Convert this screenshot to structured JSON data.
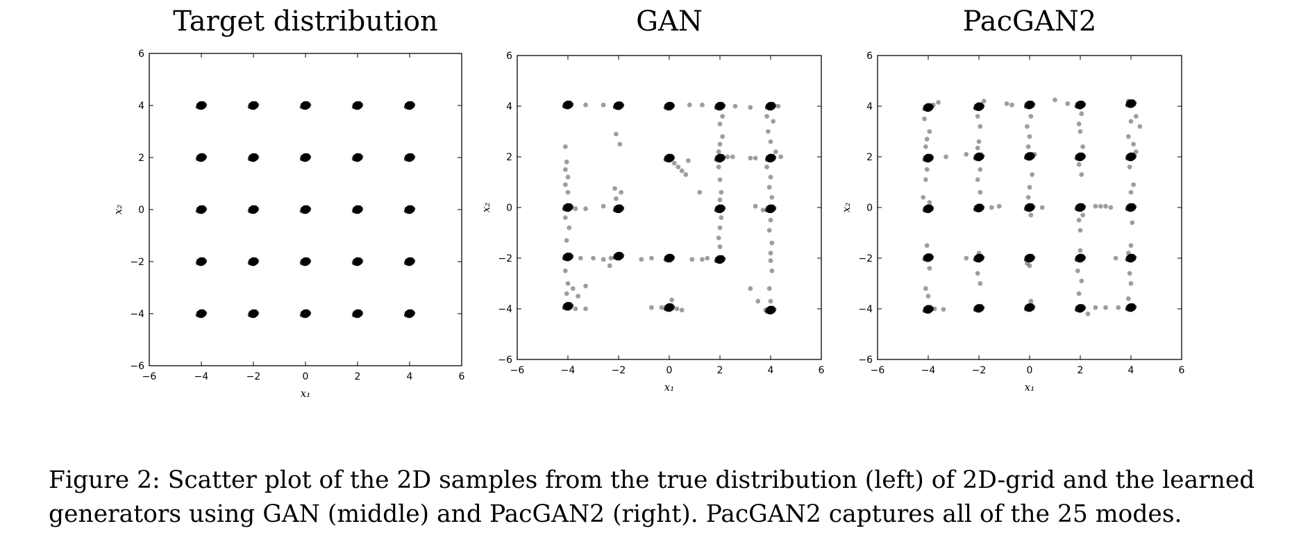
{
  "figure": {
    "caption_lines": [
      "Figure 2: Scatter plot of the 2D samples from the true distribution (left) of 2D-grid and the learned",
      "generators using GAN (middle) and PacGAN2 (right). PacGAN2 captures all of the 25 modes."
    ]
  },
  "chart_data": [
    {
      "type": "scatter",
      "title": "Target distribution",
      "xlabel": "x₁",
      "ylabel": "x₂",
      "xlim": [
        -6,
        6
      ],
      "ylim": [
        -6,
        6
      ],
      "xticks": [
        -6,
        -4,
        -2,
        0,
        2,
        4,
        6
      ],
      "yticks": [
        -6,
        -4,
        -2,
        0,
        2,
        4,
        6
      ],
      "grid": false,
      "series": [
        {
          "color": "#000000",
          "dense_points": [
            [
              -4,
              4
            ],
            [
              -2,
              4
            ],
            [
              0,
              4
            ],
            [
              2,
              4
            ],
            [
              4,
              4
            ],
            [
              -4,
              2
            ],
            [
              -2,
              2
            ],
            [
              0,
              2
            ],
            [
              2,
              2
            ],
            [
              4,
              2
            ],
            [
              -4,
              0
            ],
            [
              -2,
              0
            ],
            [
              0,
              0
            ],
            [
              2,
              0
            ],
            [
              4,
              0
            ],
            [
              -4,
              -2
            ],
            [
              -2,
              -2
            ],
            [
              0,
              -2
            ],
            [
              2,
              -2
            ],
            [
              4,
              -2
            ],
            [
              -4,
              -4
            ],
            [
              -2,
              -4
            ],
            [
              0,
              -4
            ],
            [
              2,
              -4
            ],
            [
              4,
              -4
            ]
          ],
          "sparse_points": []
        }
      ]
    },
    {
      "type": "scatter",
      "title": "GAN",
      "xlabel": "x₁",
      "ylabel": "x₂",
      "xlim": [
        -6,
        6
      ],
      "ylim": [
        -6,
        6
      ],
      "xticks": [
        -6,
        -4,
        -2,
        0,
        2,
        4,
        6
      ],
      "yticks": [
        -6,
        -4,
        -2,
        0,
        2,
        4,
        6
      ],
      "grid": false,
      "series": [
        {
          "color": "#000000",
          "dense_points": [
            [
              -4,
              4.05
            ],
            [
              -2,
              4.02
            ],
            [
              0,
              4.0
            ],
            [
              2,
              4.0
            ],
            [
              4,
              4.0
            ],
            [
              0,
              1.95
            ],
            [
              2,
              1.95
            ],
            [
              4,
              1.95
            ],
            [
              -4,
              0
            ],
            [
              -2,
              -0.05
            ],
            [
              2,
              -0.05
            ],
            [
              4,
              -0.05
            ],
            [
              -4,
              -1.95
            ],
            [
              -2,
              -1.92
            ],
            [
              0,
              -2.0
            ],
            [
              2,
              -2.05
            ],
            [
              -4,
              -3.9
            ],
            [
              0,
              -3.95
            ],
            [
              4,
              -4.05
            ]
          ],
          "sparse_points": [
            [
              -3.3,
              4.05
            ],
            [
              -2.6,
              4.05
            ],
            [
              0.8,
              4.05
            ],
            [
              1.3,
              4.05
            ],
            [
              2.6,
              4.0
            ],
            [
              3.2,
              3.95
            ],
            [
              4.3,
              4.0
            ],
            [
              2.1,
              3.6
            ],
            [
              2.0,
              3.3
            ],
            [
              2.1,
              2.8
            ],
            [
              2.0,
              2.5
            ],
            [
              1.95,
              2.2
            ],
            [
              3.85,
              3.6
            ],
            [
              4.1,
              3.4
            ],
            [
              3.9,
              3.0
            ],
            [
              4.0,
              2.6
            ],
            [
              4.2,
              2.2
            ],
            [
              -4.1,
              2.4
            ],
            [
              -4.05,
              1.8
            ],
            [
              -4.1,
              1.5
            ],
            [
              -4.0,
              1.2
            ],
            [
              -4.1,
              0.9
            ],
            [
              -4.0,
              0.6
            ],
            [
              -2.1,
              2.9
            ],
            [
              -1.95,
              2.5
            ],
            [
              0.2,
              1.75
            ],
            [
              0.35,
              1.6
            ],
            [
              0.5,
              1.45
            ],
            [
              0.65,
              1.3
            ],
            [
              0.75,
              1.85
            ],
            [
              2.3,
              2.0
            ],
            [
              2.5,
              2.0
            ],
            [
              3.2,
              1.95
            ],
            [
              3.4,
              1.95
            ],
            [
              4.4,
              2.0
            ],
            [
              -2.15,
              0.75
            ],
            [
              -1.9,
              0.6
            ],
            [
              -2.1,
              0.35
            ],
            [
              -3.7,
              -0.05
            ],
            [
              -3.3,
              -0.05
            ],
            [
              -2.6,
              0.05
            ],
            [
              1.2,
              0.6
            ],
            [
              1.95,
              1.6
            ],
            [
              2.0,
              1.1
            ],
            [
              2.05,
              0.6
            ],
            [
              2.0,
              0.3
            ],
            [
              3.85,
              1.6
            ],
            [
              4.0,
              1.2
            ],
            [
              3.95,
              0.8
            ],
            [
              4.05,
              0.4
            ],
            [
              3.4,
              0.05
            ],
            [
              3.7,
              -0.1
            ],
            [
              -4.1,
              -0.4
            ],
            [
              -3.95,
              -0.8
            ],
            [
              -4.05,
              -1.3
            ],
            [
              -3.5,
              -2.0
            ],
            [
              -3.0,
              -2.0
            ],
            [
              -2.6,
              -2.05
            ],
            [
              -2.3,
              -2.0
            ],
            [
              -2.35,
              -2.3
            ],
            [
              -1.1,
              -2.05
            ],
            [
              -0.7,
              -2.0
            ],
            [
              0.9,
              -2.05
            ],
            [
              1.3,
              -2.05
            ],
            [
              1.5,
              -2.0
            ],
            [
              2.0,
              -1.55
            ],
            [
              1.95,
              -1.2
            ],
            [
              2.0,
              -0.8
            ],
            [
              2.05,
              -0.4
            ],
            [
              4.0,
              -0.5
            ],
            [
              3.95,
              -0.9
            ],
            [
              4.05,
              -1.4
            ],
            [
              4.0,
              -1.8
            ],
            [
              -4.1,
              -2.5
            ],
            [
              -4.0,
              -3.0
            ],
            [
              -3.8,
              -3.2
            ],
            [
              -3.6,
              -3.5
            ],
            [
              -3.3,
              -3.1
            ],
            [
              -4.05,
              -3.4
            ],
            [
              -3.7,
              -4.0
            ],
            [
              -3.3,
              -4.0
            ],
            [
              -0.7,
              -3.95
            ],
            [
              -0.3,
              -3.95
            ],
            [
              0.1,
              -3.65
            ],
            [
              0.3,
              -4.0
            ],
            [
              0.5,
              -4.05
            ],
            [
              3.2,
              -3.2
            ],
            [
              3.5,
              -3.7
            ],
            [
              3.8,
              -4.05
            ],
            [
              4.0,
              -3.7
            ],
            [
              3.95,
              -3.2
            ],
            [
              4.05,
              -2.5
            ],
            [
              4.0,
              -2.1
            ]
          ]
        }
      ]
    },
    {
      "type": "scatter",
      "title": "PacGAN2",
      "xlabel": "x₁",
      "ylabel": "x₂",
      "xlim": [
        -6,
        6
      ],
      "ylim": [
        -6,
        6
      ],
      "xticks": [
        -6,
        -4,
        -2,
        0,
        2,
        4,
        6
      ],
      "yticks": [
        -6,
        -4,
        -2,
        0,
        2,
        4,
        6
      ],
      "grid": false,
      "series": [
        {
          "color": "#000000",
          "dense_points": [
            [
              -4,
              3.95
            ],
            [
              -2,
              3.98
            ],
            [
              0,
              4.05
            ],
            [
              2,
              4.05
            ],
            [
              4,
              4.1
            ],
            [
              -4,
              1.95
            ],
            [
              -2,
              2.0
            ],
            [
              0,
              2.02
            ],
            [
              2,
              2.0
            ],
            [
              4,
              2.0
            ],
            [
              -4,
              -0.05
            ],
            [
              -2,
              -0.02
            ],
            [
              0,
              0.0
            ],
            [
              2,
              0.0
            ],
            [
              4,
              0.0
            ],
            [
              -4,
              -1.98
            ],
            [
              -2,
              -2.0
            ],
            [
              0,
              -2.0
            ],
            [
              2,
              -2.0
            ],
            [
              4,
              -2.0
            ],
            [
              -4,
              -4.02
            ],
            [
              -2,
              -3.98
            ],
            [
              0,
              -3.95
            ],
            [
              2,
              -3.98
            ],
            [
              4,
              -3.95
            ]
          ],
          "sparse_points": [
            [
              -3.8,
              4.05
            ],
            [
              -3.6,
              4.15
            ],
            [
              -1.8,
              4.2
            ],
            [
              -0.9,
              4.1
            ],
            [
              -0.7,
              4.05
            ],
            [
              1.0,
              4.25
            ],
            [
              1.5,
              4.1
            ],
            [
              3.9,
              4.2
            ],
            [
              4.2,
              3.6
            ],
            [
              4.35,
              3.2
            ],
            [
              4.0,
              3.4
            ],
            [
              3.9,
              2.8
            ],
            [
              4.1,
              2.5
            ],
            [
              4.2,
              2.2
            ],
            [
              -4.15,
              3.5
            ],
            [
              -3.95,
              3.0
            ],
            [
              -4.05,
              2.7
            ],
            [
              -4.1,
              2.4
            ],
            [
              -2.05,
              3.6
            ],
            [
              -1.95,
              3.2
            ],
            [
              -2.0,
              2.6
            ],
            [
              -2.05,
              2.35
            ],
            [
              0.05,
              3.6
            ],
            [
              -0.1,
              3.2
            ],
            [
              0.0,
              2.8
            ],
            [
              -0.05,
              2.4
            ],
            [
              0.2,
              2.1
            ],
            [
              2.05,
              3.7
            ],
            [
              1.95,
              3.3
            ],
            [
              2.0,
              3.0
            ],
            [
              2.1,
              2.4
            ],
            [
              -3.3,
              2.0
            ],
            [
              -2.5,
              2.1
            ],
            [
              -4.1,
              1.1
            ],
            [
              -4.2,
              0.4
            ],
            [
              -3.95,
              0.2
            ],
            [
              -4.05,
              1.5
            ],
            [
              -1.95,
              1.5
            ],
            [
              -2.05,
              1.1
            ],
            [
              -1.95,
              0.6
            ],
            [
              -1.5,
              0.0
            ],
            [
              -1.2,
              0.05
            ],
            [
              0.1,
              1.3
            ],
            [
              0.0,
              0.8
            ],
            [
              -0.05,
              0.4
            ],
            [
              0.5,
              0.0
            ],
            [
              0.05,
              -0.3
            ],
            [
              1.95,
              1.7
            ],
            [
              2.05,
              1.3
            ],
            [
              1.95,
              -0.5
            ],
            [
              2.0,
              -0.9
            ],
            [
              2.1,
              -0.3
            ],
            [
              2.6,
              0.05
            ],
            [
              2.8,
              0.05
            ],
            [
              3.0,
              0.05
            ],
            [
              3.2,
              0.0
            ],
            [
              3.95,
              1.6
            ],
            [
              4.1,
              0.9
            ],
            [
              4.0,
              0.6
            ],
            [
              4.05,
              -0.6
            ],
            [
              4.0,
              -1.5
            ],
            [
              3.9,
              -1.8
            ],
            [
              -4.05,
              -1.5
            ],
            [
              -3.95,
              -2.4
            ],
            [
              -4.1,
              -3.2
            ],
            [
              -4.0,
              -3.5
            ],
            [
              -3.4,
              -4.02
            ],
            [
              -3.75,
              -4.0
            ],
            [
              -2.0,
              -1.8
            ],
            [
              -2.05,
              -2.6
            ],
            [
              -1.95,
              -3.0
            ],
            [
              -2.5,
              -2.0
            ],
            [
              0.0,
              -2.3
            ],
            [
              0.05,
              -3.7
            ],
            [
              -0.1,
              -2.2
            ],
            [
              2.0,
              -1.7
            ],
            [
              1.9,
              -2.5
            ],
            [
              2.05,
              -2.9
            ],
            [
              1.95,
              -3.4
            ],
            [
              2.3,
              -4.2
            ],
            [
              2.6,
              -3.95
            ],
            [
              3.0,
              -3.95
            ],
            [
              3.5,
              -3.95
            ],
            [
              3.95,
              -2.6
            ],
            [
              4.0,
              -3.0
            ],
            [
              3.9,
              -3.6
            ],
            [
              3.4,
              -2.0
            ]
          ]
        }
      ]
    }
  ]
}
